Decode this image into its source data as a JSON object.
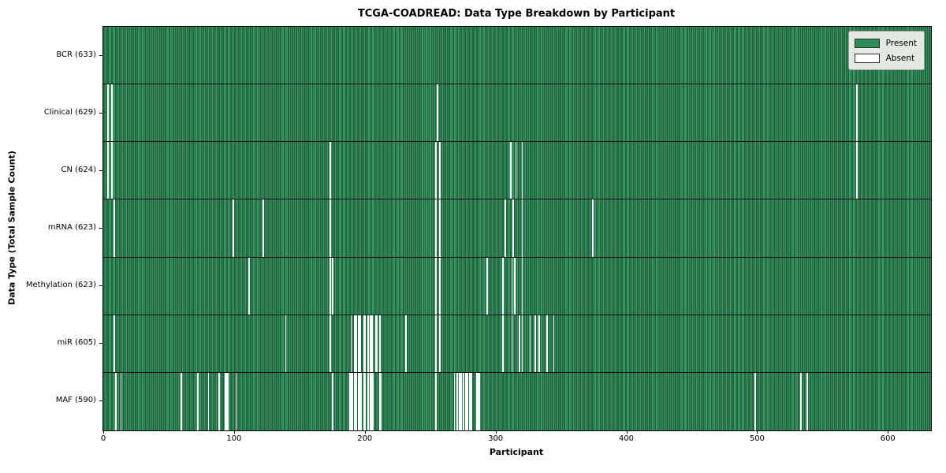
{
  "figure": {
    "title": "TCGA-COADREAD: Data Type Breakdown by Participant"
  },
  "chart_data": {
    "type": "heatmap",
    "title": "TCGA-COADREAD: Data Type Breakdown by Participant",
    "xlabel": "Participant",
    "ylabel": "Data Type (Total Sample Count)",
    "x_ticks": [
      0,
      100,
      200,
      300,
      400,
      500,
      600
    ],
    "x_range": [
      0,
      633
    ],
    "n_participants": 633,
    "grid": false,
    "legend_position": "upper-right",
    "present_color": "#2e8b57",
    "absent_color": "#ffffff",
    "legend": [
      {
        "label": "Present",
        "color": "#2e8b57"
      },
      {
        "label": "Absent",
        "color": "#ffffff"
      }
    ],
    "rows": [
      {
        "label": "BCR (633)",
        "name": "BCR",
        "total": 633,
        "absent": []
      },
      {
        "label": "Clinical (629)",
        "name": "Clinical",
        "total": 629,
        "absent": [
          3,
          6,
          255,
          576
        ]
      },
      {
        "label": "CN (624)",
        "name": "CN",
        "total": 624,
        "absent": [
          3,
          6,
          173,
          254,
          257,
          311,
          315,
          320,
          576
        ]
      },
      {
        "label": "mRNA (623)",
        "name": "mRNA",
        "total": 623,
        "absent": [
          8,
          99,
          122,
          173,
          254,
          257,
          307,
          313,
          320,
          374
        ]
      },
      {
        "label": "Methylation (623)",
        "name": "Methylation",
        "total": 623,
        "absent": [
          111,
          173,
          175,
          254,
          257,
          293,
          305,
          312,
          314,
          320
        ]
      },
      {
        "label": "miR (605)",
        "name": "miR",
        "total": 605,
        "absent": [
          8,
          139,
          173,
          189,
          192,
          193,
          195,
          196,
          199,
          200,
          202,
          204,
          205,
          208,
          209,
          211,
          231,
          254,
          257,
          305,
          312,
          318,
          320,
          326,
          330,
          333,
          339,
          344
        ]
      },
      {
        "label": "MAF (590)",
        "name": "MAF",
        "total": 590,
        "absent": [
          9,
          13,
          59,
          72,
          80,
          88,
          93,
          94,
          95,
          101,
          175,
          188,
          189,
          190,
          192,
          193,
          195,
          196,
          197,
          199,
          200,
          202,
          204,
          205,
          206,
          211,
          212,
          254,
          268,
          270,
          272,
          273,
          275,
          277,
          278,
          280,
          281,
          285,
          286,
          287,
          498,
          533,
          538
        ]
      }
    ]
  }
}
